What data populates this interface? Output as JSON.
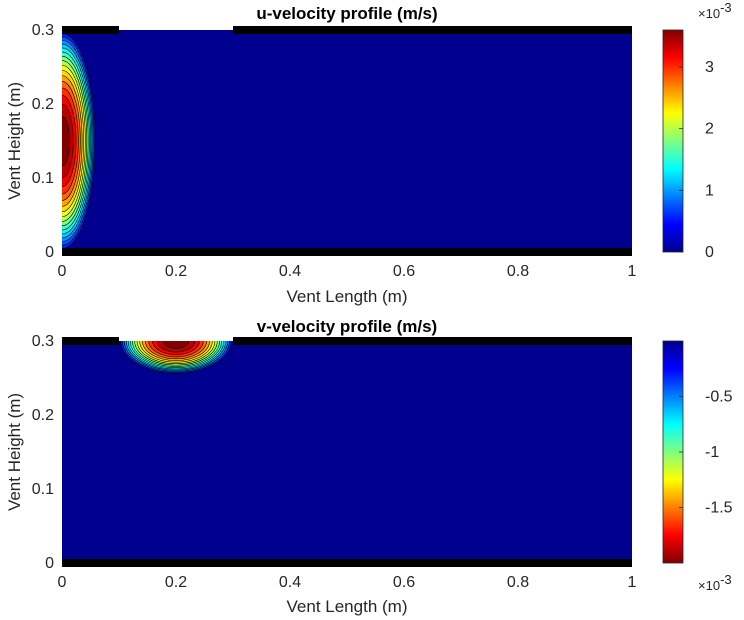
{
  "chart_data": [
    {
      "type": "heatmap",
      "title": "u-velocity profile (m/s)",
      "xlabel": "Vent Length (m)",
      "ylabel": "Vent Height (m)",
      "xlim": [
        0,
        1
      ],
      "ylim": [
        0,
        0.3
      ],
      "x_ticks": [
        "0",
        "0.2",
        "0.4",
        "0.6",
        "0.8",
        "1"
      ],
      "y_ticks": [
        "0",
        "0.1",
        "0.2",
        "0.3"
      ],
      "colorbar": {
        "colormap": "jet",
        "range": [
          0,
          3.6
        ],
        "ticks": [
          "0",
          "1",
          "2",
          "3"
        ],
        "exponent": "×10",
        "exponent_power": "-3"
      },
      "field": {
        "peak_value": 3.6,
        "center_x": 0.0,
        "center_y": 0.15,
        "extent_x": 0.06,
        "extent_y": 0.15
      },
      "walls": [
        {
          "x": [
            0,
            0.1
          ],
          "y": 0.3
        },
        {
          "x": [
            0.3,
            1.0
          ],
          "y": 0.3
        },
        {
          "x": [
            0,
            1.0
          ],
          "y": 0
        }
      ],
      "inlet": {
        "x": [
          0.1,
          0.3
        ],
        "y": 0.3
      }
    },
    {
      "type": "heatmap",
      "title": "v-velocity profile (m/s)",
      "xlabel": "Vent Length (m)",
      "ylabel": "Vent Height (m)",
      "xlim": [
        0,
        1
      ],
      "ylim": [
        0,
        0.3
      ],
      "x_ticks": [
        "0",
        "0.2",
        "0.4",
        "0.6",
        "0.8",
        "1"
      ],
      "y_ticks": [
        "0",
        "0.1",
        "0.2",
        "0.3"
      ],
      "colorbar": {
        "colormap": "jet_reversed",
        "range": [
          -2.0,
          0
        ],
        "ticks": [
          "-0.5",
          "-1",
          "-1.5"
        ],
        "exponent": "×10",
        "exponent_power": "-3"
      },
      "field": {
        "peak_value": -2.0,
        "center_x": 0.2,
        "center_y": 0.3,
        "extent_x": 0.1,
        "extent_y": 0.045
      },
      "walls": [
        {
          "x": [
            0,
            0.1
          ],
          "y": 0.3
        },
        {
          "x": [
            0.3,
            1.0
          ],
          "y": 0.3
        },
        {
          "x": [
            0,
            1.0
          ],
          "y": 0
        }
      ],
      "inlet": {
        "x": [
          0.1,
          0.3
        ],
        "y": 0.3
      }
    }
  ]
}
